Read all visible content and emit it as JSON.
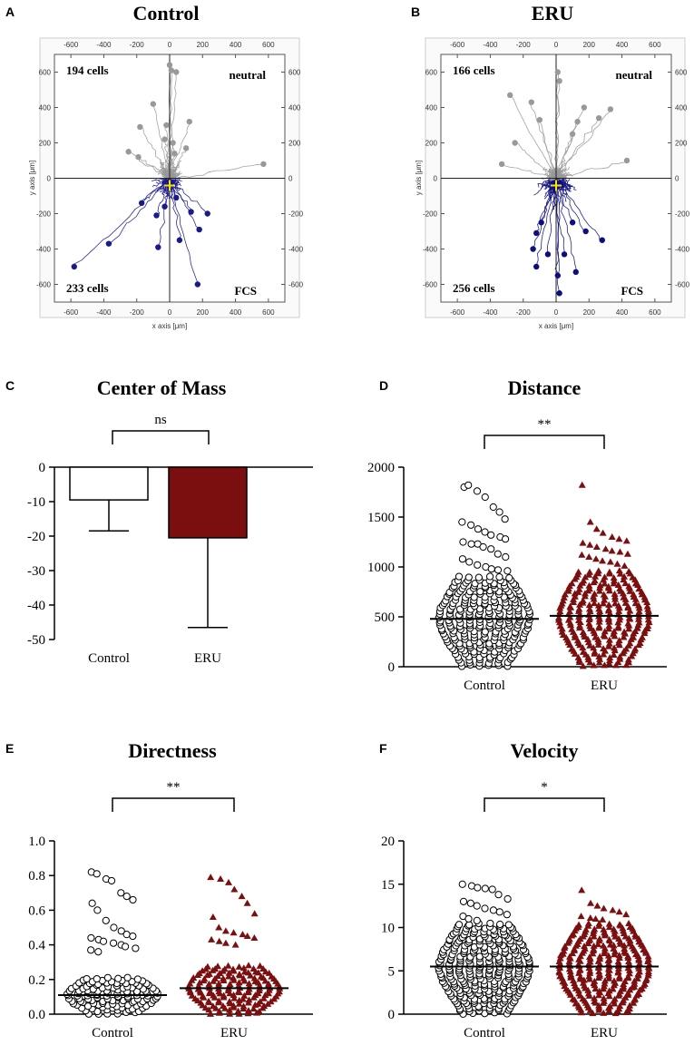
{
  "chart_data": [
    {
      "panel": "A",
      "type": "scatter",
      "title": "Control",
      "xlabel": "x axis [μm]",
      "ylabel": "y axis [μm]",
      "xlim": [
        -700,
        700
      ],
      "ylim": [
        -700,
        700
      ],
      "ticks": [
        "-600",
        "-400",
        "-200",
        "0",
        "200",
        "400",
        "600"
      ],
      "top_left": "194 cells",
      "top_right": "neutral",
      "bottom_left": "233 cells",
      "bottom_right": "FCS",
      "endpoints_upper": [
        [
          0,
          640
        ],
        [
          10,
          610
        ],
        [
          40,
          600
        ],
        [
          -100,
          420
        ],
        [
          -180,
          290
        ],
        [
          -20,
          300
        ],
        [
          120,
          320
        ],
        [
          100,
          170
        ],
        [
          -30,
          220
        ],
        [
          20,
          200
        ],
        [
          -190,
          120
        ],
        [
          -250,
          150
        ],
        [
          570,
          80
        ],
        [
          30,
          140
        ]
      ],
      "endpoints_lower": [
        [
          -580,
          -500
        ],
        [
          -370,
          -370
        ],
        [
          -170,
          -140
        ],
        [
          -80,
          -210
        ],
        [
          40,
          -110
        ],
        [
          130,
          -190
        ],
        [
          230,
          -200
        ],
        [
          180,
          -290
        ],
        [
          60,
          -350
        ],
        [
          -70,
          -390
        ],
        [
          170,
          -600
        ],
        [
          -30,
          -160
        ]
      ],
      "colors": {
        "upper": "#999999",
        "lower": "#1a1a8c",
        "center": "#f2e600"
      }
    },
    {
      "panel": "B",
      "type": "scatter",
      "title": "ERU",
      "xlabel": "x axis [μm]",
      "ylabel": "y axis [μm]",
      "xlim": [
        -700,
        700
      ],
      "ylim": [
        -700,
        700
      ],
      "ticks": [
        "-600",
        "-400",
        "-200",
        "0",
        "200",
        "400",
        "600"
      ],
      "top_left": "166 cells",
      "top_right": "neutral",
      "bottom_left": "256 cells",
      "bottom_right": "FCS",
      "endpoints_upper": [
        [
          -280,
          470
        ],
        [
          -150,
          430
        ],
        [
          10,
          600
        ],
        [
          20,
          550
        ],
        [
          170,
          400
        ],
        [
          130,
          320
        ],
        [
          260,
          340
        ],
        [
          330,
          390
        ],
        [
          -330,
          80
        ],
        [
          -250,
          200
        ],
        [
          430,
          100
        ],
        [
          100,
          250
        ],
        [
          -100,
          330
        ]
      ],
      "endpoints_lower": [
        [
          -140,
          -400
        ],
        [
          -50,
          -430
        ],
        [
          10,
          -550
        ],
        [
          20,
          -650
        ],
        [
          120,
          -530
        ],
        [
          -120,
          -500
        ],
        [
          280,
          -350
        ],
        [
          180,
          -300
        ],
        [
          -90,
          -250
        ],
        [
          100,
          -250
        ],
        [
          -120,
          -310
        ],
        [
          50,
          -430
        ]
      ],
      "colors": {
        "upper": "#999999",
        "lower": "#0d0d80",
        "center": "#f2e600"
      }
    },
    {
      "panel": "C",
      "type": "bar",
      "title": "Center of Mass",
      "categories": [
        "Control",
        "ERU"
      ],
      "values": [
        -9.5,
        -20.5
      ],
      "error_lower": [
        -18.5,
        -46.5
      ],
      "ylim": [
        -50,
        0
      ],
      "yticks": [
        "0",
        "-10",
        "-20",
        "-30",
        "-40",
        "-50"
      ],
      "significance": "ns",
      "colors": [
        "#ffffff",
        "#7b0f10"
      ]
    },
    {
      "panel": "D",
      "type": "scatter",
      "title": "Distance",
      "categories": [
        "Control",
        "ERU"
      ],
      "ylim": [
        0,
        2000
      ],
      "yticks": [
        "0",
        "500",
        "1000",
        "1500",
        "2000"
      ],
      "significance": "**",
      "means": [
        480,
        510
      ],
      "highs_control": [
        1800,
        1820,
        1760,
        1700,
        1600,
        1550,
        1480,
        1450,
        1420,
        1380,
        1350,
        1320,
        1300,
        1280,
        1250,
        1230,
        1230,
        1200,
        1180,
        1130,
        1100,
        1080,
        1050,
        1020,
        1000,
        980,
        970,
        960
      ],
      "highs_eru": [
        1820,
        1450,
        1380,
        1340,
        1300,
        1280,
        1260,
        1240,
        1220,
        1200,
        1180,
        1160,
        1150,
        1130,
        1120,
        1100,
        1080,
        1060,
        1050,
        1030,
        1010
      ],
      "colors": {
        "eru": "#7b0f10"
      }
    },
    {
      "panel": "E",
      "type": "scatter",
      "title": "Directness",
      "categories": [
        "Control",
        "ERU"
      ],
      "ylim": [
        0,
        1.0
      ],
      "yticks": [
        "0.0",
        "0.2",
        "0.4",
        "0.6",
        "0.8",
        "1.0"
      ],
      "significance": "**",
      "means": [
        0.11,
        0.15
      ],
      "highs_control": [
        0.82,
        0.81,
        0.78,
        0.77,
        0.7,
        0.68,
        0.66,
        0.64,
        0.6,
        0.54,
        0.5,
        0.48,
        0.46,
        0.45,
        0.44,
        0.43,
        0.42,
        0.41,
        0.4,
        0.39,
        0.38,
        0.37,
        0.36
      ],
      "highs_eru": [
        0.79,
        0.78,
        0.76,
        0.72,
        0.68,
        0.64,
        0.58,
        0.56,
        0.5,
        0.48,
        0.47,
        0.46,
        0.45,
        0.44,
        0.43,
        0.42,
        0.41,
        0.4
      ],
      "colors": {
        "eru": "#7b0f10"
      }
    },
    {
      "panel": "F",
      "type": "scatter",
      "title": "Velocity",
      "categories": [
        "Control",
        "ERU"
      ],
      "ylim": [
        0,
        20
      ],
      "yticks": [
        "0",
        "5",
        "10",
        "15",
        "20"
      ],
      "significance": "*",
      "means": [
        5.5,
        5.5
      ],
      "highs_control": [
        15.0,
        14.8,
        14.6,
        14.5,
        14.4,
        13.8,
        13.3,
        13.0,
        12.8,
        12.5,
        12.2,
        12.0,
        11.8,
        11.5,
        11.3,
        11.0,
        10.8
      ],
      "highs_eru": [
        14.3,
        12.8,
        12.5,
        12.2,
        12.0,
        11.8,
        11.5,
        11.3,
        11.1,
        11.0,
        10.9
      ],
      "colors": {
        "eru": "#7b0f10"
      }
    }
  ]
}
